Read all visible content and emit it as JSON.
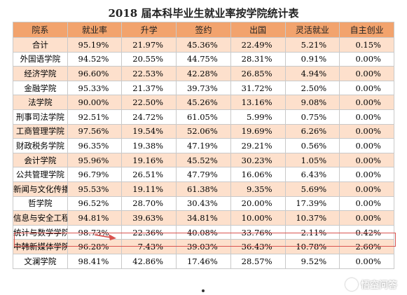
{
  "title": "2018 届本科毕业生就业率按学院统计表",
  "table": {
    "headers": [
      "院系",
      "就业率",
      "升学",
      "签约",
      "出国",
      "灵活就业",
      "自主创业"
    ],
    "rows": [
      [
        "合计",
        "95.19%",
        "21.97%",
        "45.36%",
        "22.49%",
        "5.21%",
        "0.15%"
      ],
      [
        "外国语学院",
        "94.52%",
        "20.55%",
        "44.75%",
        "28.31%",
        "0.91%",
        "0.00%"
      ],
      [
        "经济学院",
        "96.60%",
        "22.53%",
        "42.28%",
        "26.85%",
        "4.94%",
        "0.00%"
      ],
      [
        "金融学院",
        "95.33%",
        "21.37%",
        "39.73%",
        "31.72%",
        "2.50%",
        "0.00%"
      ],
      [
        "法学院",
        "90.00%",
        "22.50%",
        "45.26%",
        "13.16%",
        "9.08%",
        "0.00%"
      ],
      [
        "刑事司法学院",
        "92.51%",
        "24.72%",
        "61.05%",
        "5.99%",
        "0.75%",
        "0.00%"
      ],
      [
        "工商管理学院",
        "97.56%",
        "19.54%",
        "52.06%",
        "19.69%",
        "6.26%",
        "0.00%"
      ],
      [
        "财政税务学院",
        "96.35%",
        "19.38%",
        "47.19%",
        "29.21%",
        "0.56%",
        "0.00%"
      ],
      [
        "会计学院",
        "95.96%",
        "19.16%",
        "45.52%",
        "30.23%",
        "1.05%",
        "0.00%"
      ],
      [
        "公共管理学院",
        "96.79%",
        "26.51%",
        "47.79%",
        "16.06%",
        "6.43%",
        "0.00%"
      ],
      [
        "新闻与文化传播学院",
        "95.53%",
        "19.11%",
        "61.38%",
        "9.35%",
        "5.69%",
        "0.00%"
      ],
      [
        "哲学院",
        "96.52%",
        "28.70%",
        "30.43%",
        "20.00%",
        "17.39%",
        "0.00%"
      ],
      [
        "信息与安全工程学院",
        "94.81%",
        "39.63%",
        "34.81%",
        "10.00%",
        "10.37%",
        "0.00%"
      ],
      [
        "统计与数学学院",
        "98.73%",
        "22.36%",
        "40.08%",
        "33.76%",
        "2.11%",
        "0.42%"
      ],
      [
        "中韩新媒体学院",
        "96.28%",
        "7.43%",
        "39.03%",
        "36.43%",
        "10.78%",
        "2.60%"
      ],
      [
        "文澜学院",
        "98.41%",
        "42.86%",
        "17.46%",
        "28.57%",
        "9.52%",
        "0.00%"
      ]
    ],
    "highlighted_row": "统计与数学学院"
  },
  "annotation": {
    "color": "#d9534f",
    "icon": "arrow-right-icon"
  },
  "watermark": {
    "text": "悟空问答",
    "icon": "wukong-badge-icon"
  },
  "colors": {
    "header_bg": "#f2a36d",
    "stripe_bg": "#fde0cc",
    "highlight_border": "#d9534f"
  }
}
